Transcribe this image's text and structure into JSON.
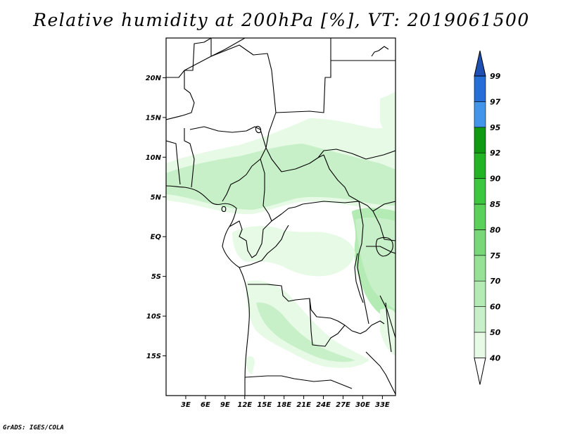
{
  "title": "Relative humidity at 200hPa [%], VT: 2019061500",
  "credit": "GrADS: IGES/COLA",
  "map": {
    "lon_range": [
      0,
      35
    ],
    "lat_range": [
      -20,
      25
    ],
    "lat_labels": [
      {
        "label": "20N",
        "lat": 20
      },
      {
        "label": "15N",
        "lat": 15
      },
      {
        "label": "10N",
        "lat": 10
      },
      {
        "label": "5N",
        "lat": 5
      },
      {
        "label": "EQ",
        "lat": 0
      },
      {
        "label": "5S",
        "lat": -5
      },
      {
        "label": "10S",
        "lat": -10
      },
      {
        "label": "15S",
        "lat": -15
      }
    ],
    "lon_labels": [
      {
        "label": "3E",
        "lon": 3
      },
      {
        "label": "6E",
        "lon": 6
      },
      {
        "label": "9E",
        "lon": 9
      },
      {
        "label": "12E",
        "lon": 12
      },
      {
        "label": "15E",
        "lon": 15
      },
      {
        "label": "18E",
        "lon": 18
      },
      {
        "label": "21E",
        "lon": 21
      },
      {
        "label": "24E",
        "lon": 24
      },
      {
        "label": "27E",
        "lon": 27
      },
      {
        "label": "30E",
        "lon": 30
      },
      {
        "label": "33E",
        "lon": 33
      }
    ]
  },
  "colorbar": {
    "levels": [
      "40",
      "50",
      "60",
      "70",
      "75",
      "80",
      "85",
      "90",
      "92",
      "95",
      "97",
      "99"
    ],
    "fill_colors": [
      "#ffffff",
      "#e6fae6",
      "#c8f0c8",
      "#b4ebb4",
      "#96e196",
      "#78d778",
      "#5ad25a",
      "#3cc83c",
      "#23b423",
      "#0f9b0f",
      "#4196eb",
      "#236ed7",
      "#1e50b4"
    ],
    "colors_by_interval": [
      {
        "range": "<40",
        "color": "#ffffff"
      },
      {
        "range": "40-50",
        "color": "#e6fae6"
      },
      {
        "range": "50-60",
        "color": "#c8f0c8"
      },
      {
        "range": "60-70",
        "color": "#b4ebb4"
      },
      {
        "range": "70-75",
        "color": "#96e196"
      },
      {
        "range": "75-80",
        "color": "#78d778"
      },
      {
        "range": "80-85",
        "color": "#5ad25a"
      },
      {
        "range": "85-90",
        "color": "#3cc83c"
      },
      {
        "range": "90-92",
        "color": "#23b423"
      },
      {
        "range": "92-95",
        "color": "#0f9b0f"
      },
      {
        "range": "95-97",
        "color": "#4196eb"
      },
      {
        "range": "97-99",
        "color": "#236ed7"
      },
      {
        "range": ">99",
        "color": "#1e50b4"
      }
    ]
  }
}
